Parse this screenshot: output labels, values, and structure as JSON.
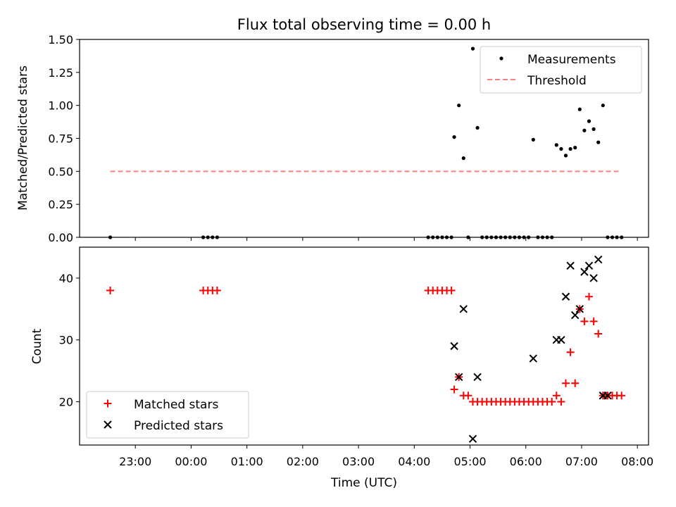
{
  "chart_data": [
    {
      "type": "scatter",
      "title": "Flux total observing time = 0.00 h",
      "xlabel": "",
      "ylabel": "Matched/Predicted stars",
      "ylim": [
        0,
        1.5
      ],
      "yticks": [
        "0.00",
        "0.25",
        "0.50",
        "0.75",
        "1.00",
        "1.25",
        "1.50"
      ],
      "legend_position": "top-right",
      "series": [
        {
          "name": "Measurements",
          "kind": "scatter",
          "marker": "dot",
          "color": "#000000",
          "points": [
            [
              "22:33",
              0.0
            ],
            [
              "00:13",
              0.0
            ],
            [
              "00:18",
              0.0
            ],
            [
              "00:23",
              0.0
            ],
            [
              "00:28",
              0.0
            ],
            [
              "04:15",
              0.0
            ],
            [
              "04:20",
              0.0
            ],
            [
              "04:25",
              0.0
            ],
            [
              "04:30",
              0.0
            ],
            [
              "04:35",
              0.0
            ],
            [
              "04:40",
              0.0
            ],
            [
              "04:43",
              0.76
            ],
            [
              "04:48",
              1.0
            ],
            [
              "04:53",
              0.6
            ],
            [
              "04:58",
              0.0
            ],
            [
              "05:03",
              1.43
            ],
            [
              "05:08",
              0.83
            ],
            [
              "05:13",
              0.0
            ],
            [
              "05:18",
              0.0
            ],
            [
              "05:23",
              0.0
            ],
            [
              "05:28",
              0.0
            ],
            [
              "05:33",
              0.0
            ],
            [
              "05:38",
              0.0
            ],
            [
              "05:43",
              0.0
            ],
            [
              "05:48",
              0.0
            ],
            [
              "05:53",
              0.0
            ],
            [
              "05:58",
              0.0
            ],
            [
              "06:03",
              0.0
            ],
            [
              "06:08",
              0.74
            ],
            [
              "06:13",
              0.0
            ],
            [
              "06:18",
              0.0
            ],
            [
              "06:23",
              0.0
            ],
            [
              "06:28",
              0.0
            ],
            [
              "06:33",
              0.7
            ],
            [
              "06:38",
              0.67
            ],
            [
              "06:43",
              0.62
            ],
            [
              "06:48",
              0.67
            ],
            [
              "06:53",
              0.68
            ],
            [
              "06:58",
              0.97
            ],
            [
              "07:03",
              0.81
            ],
            [
              "07:08",
              0.88
            ],
            [
              "07:13",
              0.82
            ],
            [
              "07:18",
              0.72
            ],
            [
              "07:23",
              1.0
            ],
            [
              "07:28",
              0.0
            ],
            [
              "07:33",
              0.0
            ],
            [
              "07:38",
              0.0
            ],
            [
              "07:43",
              0.0
            ]
          ]
        },
        {
          "name": "Threshold",
          "kind": "line",
          "style": "dashed",
          "color": "#ff7f7f",
          "points": [
            [
              "22:33",
              0.5
            ],
            [
              "07:43",
              0.5
            ]
          ]
        }
      ]
    },
    {
      "type": "scatter",
      "title": "",
      "xlabel": "Time (UTC)",
      "ylabel": "Count",
      "ylim": [
        13,
        45
      ],
      "yticks": [
        "20",
        "30",
        "40"
      ],
      "xlim": [
        "22:00",
        "08:12"
      ],
      "xticks": [
        "23:00",
        "00:00",
        "01:00",
        "02:00",
        "03:00",
        "04:00",
        "05:00",
        "06:00",
        "07:00",
        "08:00"
      ],
      "legend_position": "lower-left",
      "series": [
        {
          "name": "Matched stars",
          "marker": "plus",
          "color": "#ff0000",
          "points": [
            [
              "22:33",
              38
            ],
            [
              "00:13",
              38
            ],
            [
              "00:18",
              38
            ],
            [
              "00:23",
              38
            ],
            [
              "00:28",
              38
            ],
            [
              "04:15",
              38
            ],
            [
              "04:20",
              38
            ],
            [
              "04:25",
              38
            ],
            [
              "04:30",
              38
            ],
            [
              "04:35",
              38
            ],
            [
              "04:40",
              38
            ],
            [
              "04:43",
              22
            ],
            [
              "04:48",
              24
            ],
            [
              "04:53",
              21
            ],
            [
              "04:58",
              21
            ],
            [
              "05:03",
              20
            ],
            [
              "05:08",
              20
            ],
            [
              "05:13",
              20
            ],
            [
              "05:18",
              20
            ],
            [
              "05:23",
              20
            ],
            [
              "05:28",
              20
            ],
            [
              "05:33",
              20
            ],
            [
              "05:38",
              20
            ],
            [
              "05:43",
              20
            ],
            [
              "05:48",
              20
            ],
            [
              "05:53",
              20
            ],
            [
              "05:58",
              20
            ],
            [
              "06:03",
              20
            ],
            [
              "06:08",
              20
            ],
            [
              "06:13",
              20
            ],
            [
              "06:18",
              20
            ],
            [
              "06:23",
              20
            ],
            [
              "06:28",
              20
            ],
            [
              "06:33",
              21
            ],
            [
              "06:38",
              20
            ],
            [
              "06:43",
              23
            ],
            [
              "06:48",
              28
            ],
            [
              "06:53",
              23
            ],
            [
              "06:58",
              35
            ],
            [
              "07:03",
              33
            ],
            [
              "07:08",
              37
            ],
            [
              "07:13",
              33
            ],
            [
              "07:18",
              31
            ],
            [
              "07:23",
              21
            ],
            [
              "07:28",
              21
            ],
            [
              "07:33",
              21
            ],
            [
              "07:38",
              21
            ],
            [
              "07:43",
              21
            ]
          ]
        },
        {
          "name": "Predicted stars",
          "marker": "x",
          "color": "#000000",
          "points": [
            [
              "04:43",
              29
            ],
            [
              "04:48",
              24
            ],
            [
              "04:53",
              35
            ],
            [
              "05:03",
              14
            ],
            [
              "05:08",
              24
            ],
            [
              "06:08",
              27
            ],
            [
              "06:33",
              30
            ],
            [
              "06:38",
              30
            ],
            [
              "06:43",
              37
            ],
            [
              "06:48",
              42
            ],
            [
              "06:53",
              34
            ],
            [
              "06:58",
              35
            ],
            [
              "07:03",
              41
            ],
            [
              "07:08",
              42
            ],
            [
              "07:13",
              40
            ],
            [
              "07:18",
              43
            ],
            [
              "07:23",
              21
            ],
            [
              "07:28",
              21
            ]
          ]
        }
      ]
    }
  ]
}
